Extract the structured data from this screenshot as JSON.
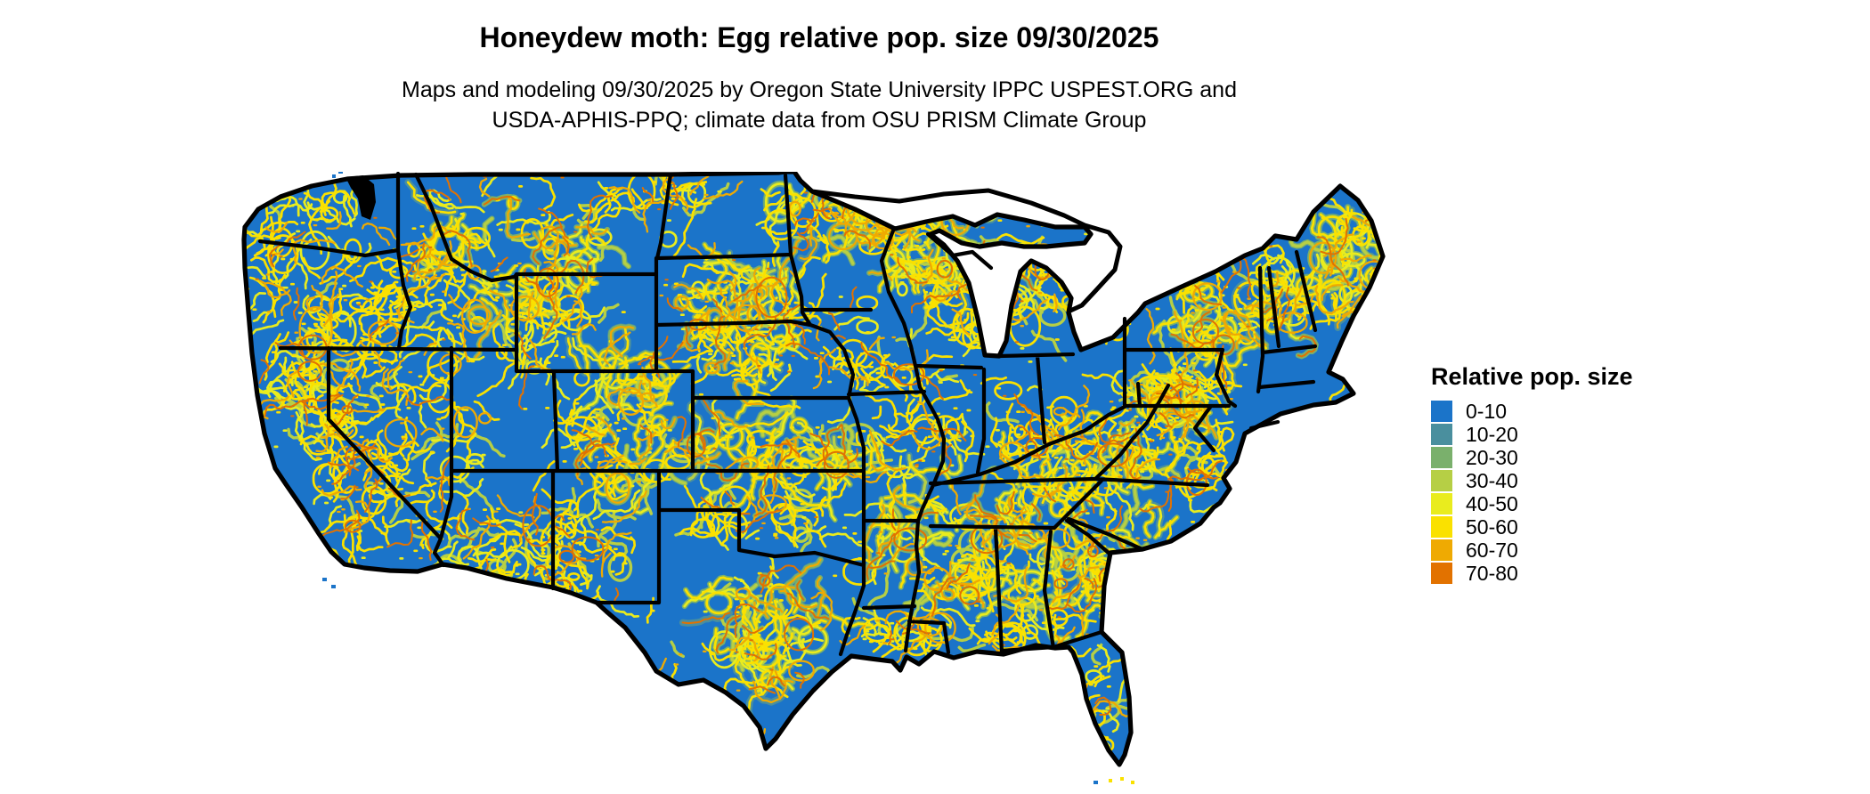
{
  "figure": {
    "title": "Honeydew moth: Egg relative pop. size 09/30/2025",
    "subtitle_line1": "Maps and modeling 09/30/2025 by Oregon State University IPPC USPEST.ORG and",
    "subtitle_line2": "USDA-APHIS-PPQ; climate data from OSU PRISM Climate Group"
  },
  "map": {
    "description": "Contiguous United States raster map of relative population size",
    "base_color": "#1b74c9",
    "boundary_color": "#000000",
    "background_color": "#ffffff"
  },
  "legend": {
    "title": "Relative pop. size",
    "items": [
      {
        "label": "0-10",
        "color": "#1b74c9"
      },
      {
        "label": "10-20",
        "color": "#4a8f9e"
      },
      {
        "label": "20-30",
        "color": "#7ab06c"
      },
      {
        "label": "30-40",
        "color": "#b6cf45"
      },
      {
        "label": "40-50",
        "color": "#e9ec1e"
      },
      {
        "label": "50-60",
        "color": "#fae100"
      },
      {
        "label": "60-70",
        "color": "#efaa02"
      },
      {
        "label": "70-80",
        "color": "#e27200"
      }
    ]
  }
}
